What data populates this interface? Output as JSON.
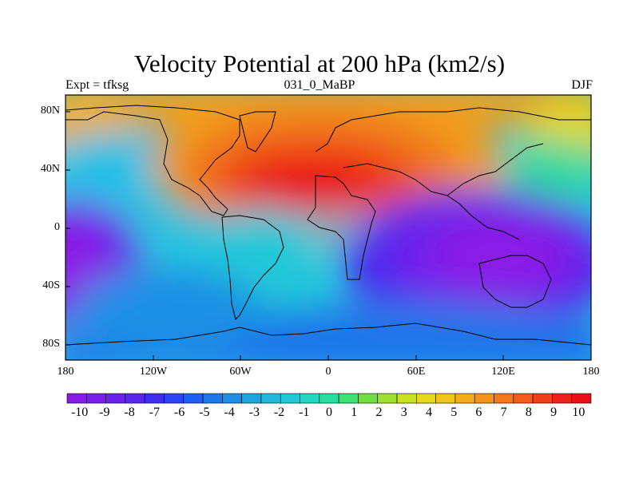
{
  "title": "Velocity Potential at 200 hPa (km2/s)",
  "left_label": "Expt = tfksg",
  "center_label": "031_0_MaBP",
  "right_label": "DJF",
  "lat_ticks": [
    "80N",
    "40N",
    "0",
    "40S",
    "80S"
  ],
  "lon_ticks": [
    "180",
    "120W",
    "60W",
    "0",
    "60E",
    "120E",
    "180"
  ],
  "colorbar": {
    "labels": [
      "-10",
      "-9",
      "-8",
      "-7",
      "-6",
      "-5",
      "-4",
      "-3",
      "-2",
      "-1",
      "0",
      "1",
      "2",
      "3",
      "4",
      "5",
      "6",
      "7",
      "8",
      "9",
      "10"
    ],
    "min": -10.5,
    "max": 10.5,
    "colors": [
      "#8a1ae6",
      "#7a1ee8",
      "#6a22ea",
      "#5a26ec",
      "#3f2ef0",
      "#2c44f2",
      "#2060f0",
      "#1e78ec",
      "#1e8ee6",
      "#20a4e0",
      "#22b8dc",
      "#24c8d8",
      "#26d4c4",
      "#2adca0",
      "#40e070",
      "#70e040",
      "#a0e030",
      "#c8e028",
      "#e4d820",
      "#f0c41c",
      "#f4ac1a",
      "#f4921a",
      "#f2781a",
      "#f05c1a",
      "#ee401a",
      "#ec2418",
      "#e81016"
    ]
  },
  "map_data": {
    "field": "velocity_potential",
    "units": "km2/s",
    "centers": [
      {
        "lon": -25,
        "lat": 25,
        "value": 10
      },
      {
        "lon": 145,
        "lat": -10,
        "value": -10
      },
      {
        "lon": -175,
        "lat": -20,
        "value": -10
      }
    ]
  }
}
